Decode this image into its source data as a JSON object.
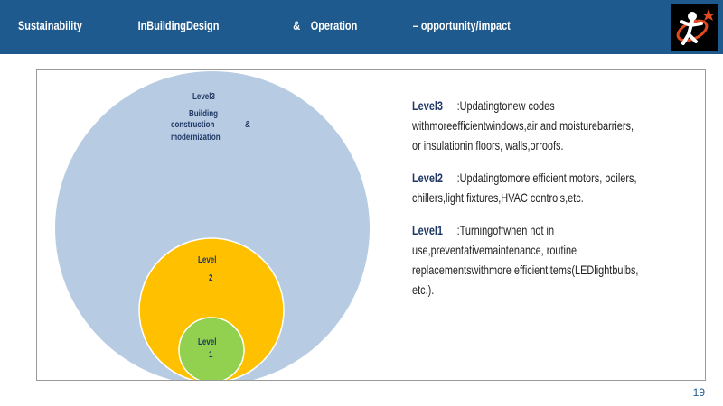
{
  "header": {
    "title_parts": [
      "Sustainability",
      "InBuildingDesign",
      "&",
      "Operation",
      "– opportunity/impact"
    ],
    "bg_color": "#1f5a8e"
  },
  "logo": {
    "icon": "figure-with-star-logo-icon"
  },
  "diagram": {
    "outer": {
      "label_line1": "Level3",
      "label_line2": "Building",
      "label_line3": "construction",
      "label_amp": "&",
      "label_line4": "modernization",
      "color": "#b7cbe3"
    },
    "middle": {
      "label_line1": "Level",
      "label_line2": "2",
      "color": "#ffc000"
    },
    "inner": {
      "label_line1": "Level",
      "label_line2": "1",
      "color": "#92d050"
    }
  },
  "descriptions": [
    {
      "level": "Level3",
      "text": ":Updatingtonew codes withmoreefficientwindows,air and moisturebarriers, or insulationin floors, walls,orroofs."
    },
    {
      "level": "Level2",
      "text": ":Updatingtomore efficient motors, boilers, chillers,light fixtures,HVAC controls,etc."
    },
    {
      "level": "Level1",
      "text": ":Turningoffwhen not in use,preventativemaintenance, routine replacementswithmore efficientitems(LEDlightbulbs, etc.)."
    }
  ],
  "page_number": "19"
}
